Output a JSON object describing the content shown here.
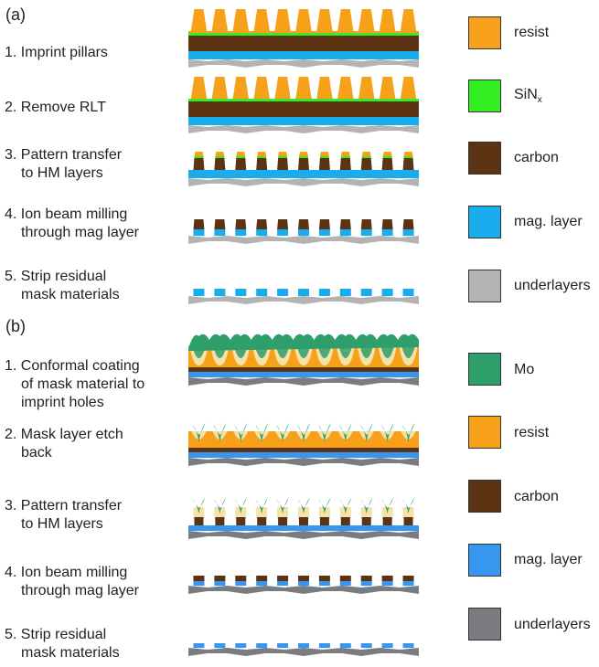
{
  "panel_a": {
    "tag": "(a)",
    "steps": [
      {
        "lines": [
          "1. Imprint pillars"
        ]
      },
      {
        "lines": [
          "2. Remove RLT"
        ]
      },
      {
        "lines": [
          "3. Pattern transfer",
          "to HM layers"
        ]
      },
      {
        "lines": [
          "4. Ion beam milling",
          "through mag layer"
        ]
      },
      {
        "lines": [
          "5. Strip residual",
          "mask materials"
        ]
      }
    ],
    "legend": [
      {
        "label": "resist",
        "color": "#F7A11A"
      },
      {
        "label": "SiN",
        "sub": "x",
        "color": "#33EE22"
      },
      {
        "label": "carbon",
        "color": "#5C3313"
      },
      {
        "label": "mag. layer",
        "color": "#19ADEE"
      },
      {
        "label": "underlayers",
        "color": "#B3B3B3"
      }
    ]
  },
  "panel_b": {
    "tag": "(b)",
    "steps": [
      {
        "lines": [
          "1. Conformal coating",
          "of mask material to",
          "imprint holes"
        ]
      },
      {
        "lines": [
          "2. Mask layer etch",
          "back"
        ]
      },
      {
        "lines": [
          "3. Pattern transfer",
          "to HM layers"
        ]
      },
      {
        "lines": [
          "4. Ion beam milling",
          "through mag layer"
        ]
      },
      {
        "lines": [
          "5. Strip residual",
          "mask materials"
        ]
      }
    ],
    "legend": [
      {
        "label": "Mo",
        "color": "#2E9E6B"
      },
      {
        "label": "resist",
        "color": "#F7A11A"
      },
      {
        "label": "carbon",
        "color": "#5C3313"
      },
      {
        "label": "mag. layer",
        "color": "#3797F0"
      },
      {
        "label": "underlayers",
        "color": "#7A7C80"
      }
    ]
  }
}
